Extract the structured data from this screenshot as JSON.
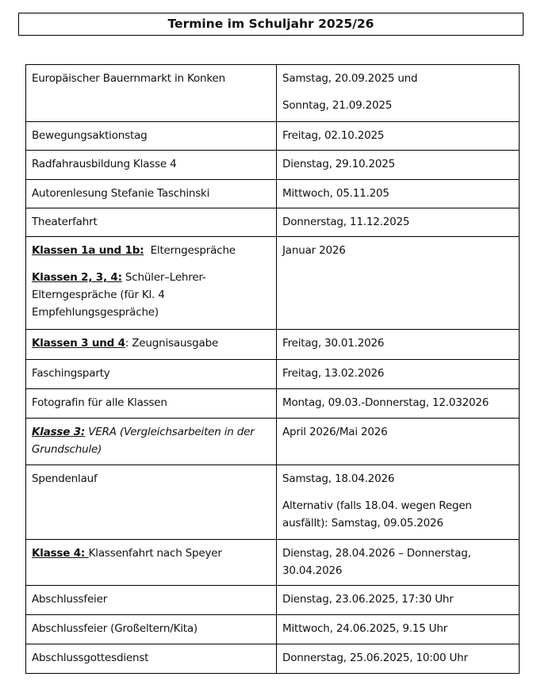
{
  "title": "Termine im Schuljahr 2025/26",
  "rows": [
    {
      "event": [
        [
          {
            "t": "Europäischer Bauernmarkt in Konken"
          }
        ]
      ],
      "date": [
        [
          {
            "t": "Samstag, 20.09.2025 und"
          }
        ],
        [
          {
            "t": "Sonntag, 21.09.2025"
          }
        ]
      ]
    },
    {
      "event": [
        [
          {
            "t": "Bewegungsaktionstag"
          }
        ]
      ],
      "date": [
        [
          {
            "t": "Freitag, 02.10.2025"
          }
        ]
      ]
    },
    {
      "event": [
        [
          {
            "t": "Radfahrausbildung Klasse 4"
          }
        ]
      ],
      "date": [
        [
          {
            "t": "Dienstag, 29.10.2025"
          }
        ]
      ]
    },
    {
      "event": [
        [
          {
            "t": "Autorenlesung Stefanie Taschinski"
          }
        ]
      ],
      "date": [
        [
          {
            "t": "Mittwoch, 05.11.205"
          }
        ]
      ]
    },
    {
      "event": [
        [
          {
            "t": "Theaterfahrt"
          }
        ]
      ],
      "date": [
        [
          {
            "t": "Donnerstag, 11.12.2025"
          }
        ]
      ]
    },
    {
      "event": [
        [
          {
            "t": "Klassen 1a und 1b:",
            "s": "b"
          },
          {
            "t": "  Elterngespräche"
          }
        ],
        [
          {
            "t": "Klassen 2, 3, 4:",
            "s": "b"
          },
          {
            "t": " Schüler–Lehrer-Elterngespräche (für Kl. 4 Empfehlungsgespräche)"
          }
        ]
      ],
      "date": [
        [
          {
            "t": "Januar 2026"
          }
        ]
      ]
    },
    {
      "event": [
        [
          {
            "t": "Klassen 3 und 4",
            "s": "b"
          },
          {
            "t": ": Zeugnisausgabe"
          }
        ]
      ],
      "date": [
        [
          {
            "t": "Freitag, 30.01.2026"
          }
        ]
      ]
    },
    {
      "event": [
        [
          {
            "t": "Faschingsparty"
          }
        ]
      ],
      "date": [
        [
          {
            "t": "Freitag, 13.02.2026"
          }
        ]
      ]
    },
    {
      "event": [
        [
          {
            "t": "Fotografin für alle Klassen"
          }
        ]
      ],
      "date": [
        [
          {
            "t": "Montag, 09.03.-Donnerstag, 12.032026"
          }
        ]
      ]
    },
    {
      "event": [
        [
          {
            "t": "Klasse 3:",
            "s": "bi"
          },
          {
            "t": " VERA (Vergleichsarbeiten in der Grundschule)",
            "s": "i"
          }
        ]
      ],
      "date": [
        [
          {
            "t": "April 2026/Mai 2026"
          }
        ]
      ]
    },
    {
      "event": [
        [
          {
            "t": "Spendenlauf"
          }
        ]
      ],
      "date": [
        [
          {
            "t": "Samstag, 18.04.2026"
          }
        ],
        [
          {
            "t": "Alternativ (falls 18.04. wegen Regen ausfällt): Samstag, 09.05.2026"
          }
        ]
      ]
    },
    {
      "event": [
        [
          {
            "t": "Klasse 4: ",
            "s": "b"
          },
          {
            "t": "Klassenfahrt nach Speyer"
          }
        ]
      ],
      "date": [
        [
          {
            "t": "Dienstag, 28.04.2026 – Donnerstag, 30.04.2026"
          }
        ]
      ]
    },
    {
      "event": [
        [
          {
            "t": "Abschlussfeier"
          }
        ]
      ],
      "date": [
        [
          {
            "t": "Dienstag, 23.06.2025, 17:30 Uhr"
          }
        ]
      ]
    },
    {
      "event": [
        [
          {
            "t": "Abschlussfeier (Großeltern/Kita)"
          }
        ]
      ],
      "date": [
        [
          {
            "t": "Mittwoch, 24.06.2025, 9.15 Uhr"
          }
        ]
      ]
    },
    {
      "event": [
        [
          {
            "t": "Abschlussgottesdienst"
          }
        ]
      ],
      "date": [
        [
          {
            "t": "Donnerstag, 25.06.2025, 10:00 Uhr"
          }
        ]
      ]
    }
  ]
}
